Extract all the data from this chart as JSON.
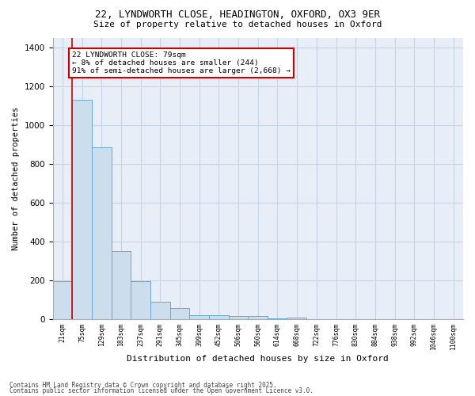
{
  "title1": "22, LYNDWORTH CLOSE, HEADINGTON, OXFORD, OX3 9ER",
  "title2": "Size of property relative to detached houses in Oxford",
  "xlabel": "Distribution of detached houses by size in Oxford",
  "ylabel": "Number of detached properties",
  "bar_labels": [
    "21sqm",
    "75sqm",
    "129sqm",
    "183sqm",
    "237sqm",
    "291sqm",
    "345sqm",
    "399sqm",
    "452sqm",
    "506sqm",
    "560sqm",
    "614sqm",
    "668sqm",
    "722sqm",
    "776sqm",
    "830sqm",
    "884sqm",
    "938sqm",
    "992sqm",
    "1046sqm",
    "1100sqm"
  ],
  "bar_values": [
    195,
    1130,
    885,
    350,
    195,
    90,
    55,
    22,
    20,
    15,
    15,
    5,
    10,
    0,
    0,
    0,
    0,
    0,
    0,
    0,
    0
  ],
  "bar_color": "#ccdded",
  "bar_edge_color": "#6aaad4",
  "red_line_x": 1,
  "annotation_text": "22 LYNDWORTH CLOSE: 79sqm\n← 8% of detached houses are smaller (244)\n91% of semi-detached houses are larger (2,668) →",
  "annotation_box_color": "#ffffff",
  "annotation_box_edge": "#cc0000",
  "ylim": [
    0,
    1450
  ],
  "yticks": [
    0,
    200,
    400,
    600,
    800,
    1000,
    1200,
    1400
  ],
  "grid_color": "#c8d4e4",
  "bg_color": "#e8eef8",
  "footer1": "Contains HM Land Registry data © Crown copyright and database right 2025.",
  "footer2": "Contains public sector information licensed under the Open Government Licence v3.0."
}
